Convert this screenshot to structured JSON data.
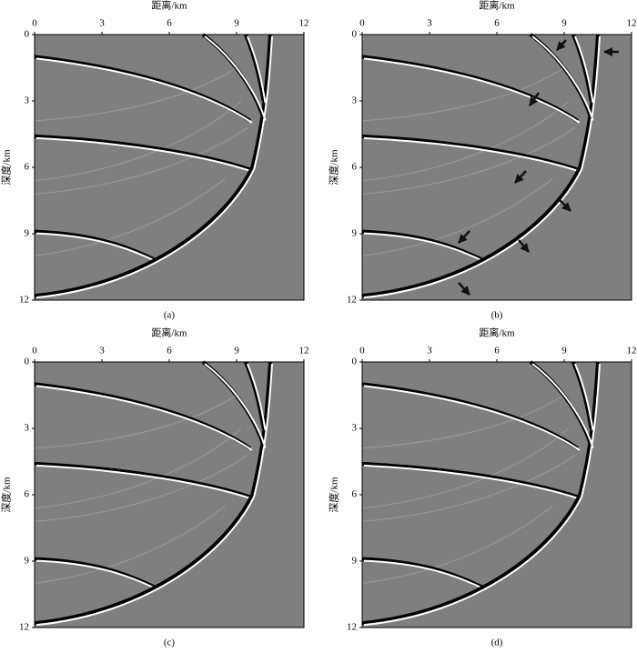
{
  "panels": [
    {
      "caption": "(a)",
      "x_label": "距离/km",
      "y_label": "深度/km",
      "xticks": [
        0,
        3,
        6,
        9,
        12
      ],
      "yticks": [
        0,
        3,
        6,
        9,
        12
      ]
    },
    {
      "caption": "(b)",
      "x_label": "距离/km",
      "y_label": "深度/km",
      "xticks": [
        0,
        3,
        6,
        9,
        12
      ],
      "yticks": [
        0,
        3,
        6,
        9,
        12
      ]
    },
    {
      "caption": "(c)",
      "x_label": "距离/km",
      "y_label": "深度/km",
      "xticks": [
        0,
        3,
        6,
        9,
        12
      ],
      "yticks": [
        0,
        3,
        6,
        9,
        12
      ]
    },
    {
      "caption": "(d)",
      "x_label": "距离/km",
      "y_label": "深度/km",
      "xticks": [
        0,
        3,
        6,
        9,
        12
      ],
      "yticks": [
        0,
        3,
        6,
        9,
        12
      ]
    }
  ]
}
